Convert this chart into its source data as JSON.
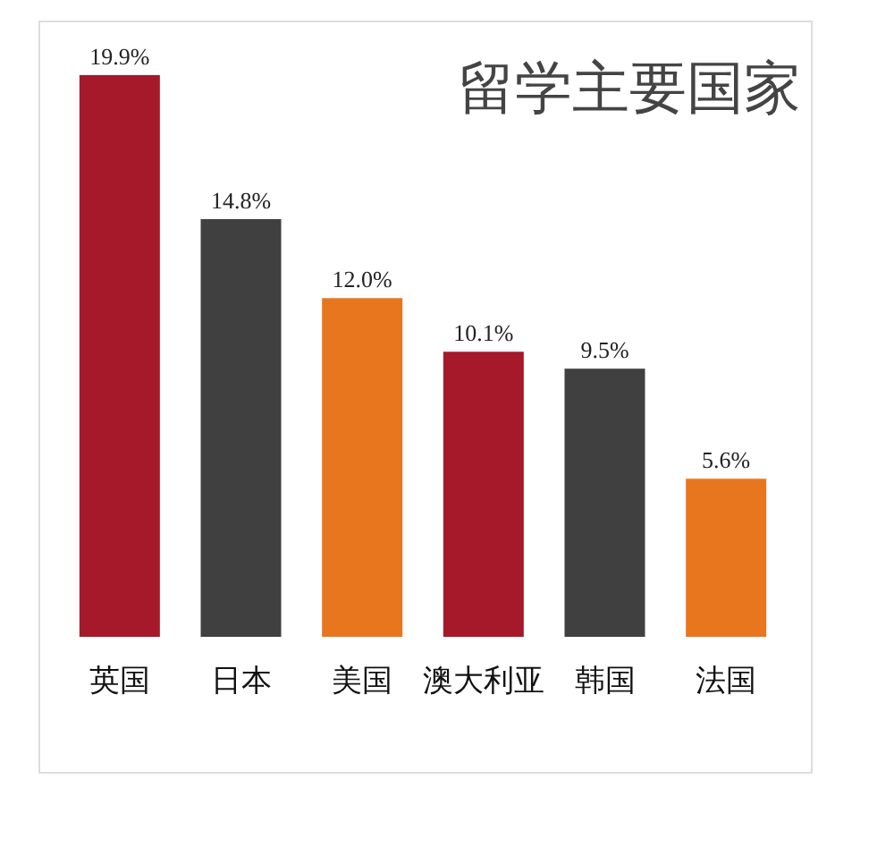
{
  "chart_data": {
    "type": "bar",
    "title": "留学主要国家",
    "categories": [
      "英国",
      "日本",
      "美国",
      "澳大利亚",
      "韩国",
      "法国"
    ],
    "values": [
      19.9,
      14.8,
      12.0,
      10.1,
      9.5,
      5.6
    ],
    "value_labels": [
      "19.9%",
      "14.8%",
      "12.0%",
      "10.1%",
      "9.5%",
      "5.6%"
    ],
    "colors": [
      "#a5192b",
      "#404041",
      "#e8761f",
      "#a5192b",
      "#404041",
      "#e8761f"
    ]
  }
}
